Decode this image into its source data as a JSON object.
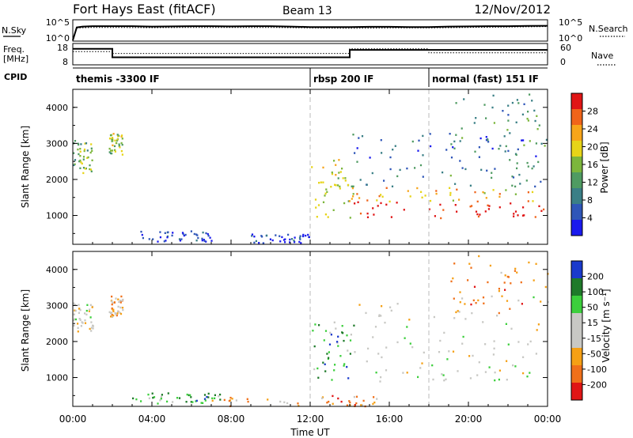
{
  "header": {
    "station": "Fort Hays East (fitACF)",
    "beam": "Beam 13",
    "date": "12/Nov/2012"
  },
  "chart_data": [
    {
      "type": "line",
      "panel": "noise",
      "left_label": "N.Sky",
      "right_label": "N.Search",
      "left_ticks": [
        "10^5",
        "10^0"
      ],
      "right_ticks": [
        "10^5",
        "10^0"
      ],
      "x_range_hours": [
        0,
        24
      ],
      "series": [
        {
          "name": "N.Sky",
          "style": "solid",
          "x": [
            0.0,
            0.2,
            0.5,
            1,
            2,
            3,
            4,
            5,
            6,
            7,
            8,
            9,
            10,
            11,
            12,
            13,
            14,
            15,
            16,
            17,
            18,
            19,
            20,
            21,
            22,
            23,
            24
          ],
          "y": [
            0.2,
            3.2,
            3.4,
            3.5,
            3.5,
            3.5,
            3.4,
            3.45,
            3.5,
            3.5,
            3.45,
            3.5,
            3.5,
            3.4,
            3.3,
            3.3,
            3.3,
            3.35,
            3.35,
            3.3,
            3.3,
            3.4,
            3.45,
            3.5,
            3.5,
            3.55,
            3.6
          ]
        },
        {
          "name": "N.Search",
          "style": "dotted",
          "x": [
            0.2,
            1,
            2,
            4,
            6,
            8,
            10,
            12,
            14,
            16,
            18,
            20,
            22,
            24
          ],
          "y": [
            3.1,
            3.2,
            3.2,
            3.15,
            3.2,
            3.2,
            3.2,
            3.1,
            3.0,
            3.1,
            3.1,
            3.2,
            3.3,
            3.4
          ]
        }
      ]
    },
    {
      "type": "line",
      "panel": "freq",
      "left_label_1": "Freq.",
      "left_label_2": "[MHz]",
      "right_label": "Nave",
      "left_ticks": [
        "18",
        "8"
      ],
      "right_ticks": [
        "60",
        "0"
      ],
      "series": [
        {
          "name": "Freq",
          "style": "solid",
          "x": [
            0,
            2,
            2,
            14,
            14,
            24
          ],
          "y": [
            15.5,
            15.5,
            11.5,
            11.5,
            15.0,
            15.0
          ]
        },
        {
          "name": "Nave",
          "style": "dotted",
          "x": [
            0,
            2,
            2,
            14,
            14,
            18,
            18,
            24
          ],
          "y": [
            37,
            37,
            32,
            32,
            45,
            45,
            34,
            34
          ]
        }
      ]
    },
    {
      "panel": "cpid",
      "label": "CPID",
      "segments": [
        {
          "name": "themis -3300 IF",
          "start": 0,
          "end": 12
        },
        {
          "name": "rbsp 200 IF",
          "start": 12,
          "end": 18
        },
        {
          "name": "normal (fast) 151 IF",
          "start": 18,
          "end": 24
        }
      ]
    },
    {
      "type": "heatmap",
      "panel": "power",
      "ylabel": "Slant Range [km]",
      "yticks": [
        "1000",
        "2000",
        "3000",
        "4000"
      ],
      "ylim": [
        200,
        4500
      ],
      "colorbar_label": "Power [dB]",
      "colorbar_ticks": [
        "4",
        "8",
        "12",
        "16",
        "20",
        "24",
        "28"
      ],
      "clim": [
        0,
        32
      ],
      "colors": [
        "#1a1aee",
        "#2f56b8",
        "#3a7f86",
        "#4f9b62",
        "#7cb63c",
        "#e7d418",
        "#f7a51a",
        "#f0641a",
        "#e01515"
      ],
      "regions": [
        {
          "t": [
            0.0,
            1.0
          ],
          "r": [
            2200,
            3100
          ],
          "level": 0.45
        },
        {
          "t": [
            1.8,
            2.5
          ],
          "r": [
            2700,
            3300
          ],
          "level": 0.5
        },
        {
          "t": [
            3.0,
            7.0
          ],
          "r": [
            300,
            600
          ],
          "level": 0.1
        },
        {
          "t": [
            9.0,
            12.0
          ],
          "r": [
            250,
            500
          ],
          "level": 0.1
        },
        {
          "t": [
            12.0,
            14.0
          ],
          "r": [
            900,
            2600
          ],
          "level": 0.6
        },
        {
          "t": [
            14.0,
            23.8
          ],
          "r": [
            950,
            1400
          ],
          "level": 0.98
        },
        {
          "t": [
            14.0,
            23.8
          ],
          "r": [
            1400,
            1800
          ],
          "level": 0.7
        },
        {
          "t": [
            14.0,
            23.8
          ],
          "r": [
            1800,
            2600
          ],
          "level": 0.3
        },
        {
          "t": [
            14.0,
            23.8
          ],
          "r": [
            2600,
            3300
          ],
          "level": 0.2
        },
        {
          "t": [
            19.0,
            24.0
          ],
          "r": [
            2800,
            4400
          ],
          "level": 0.35
        }
      ]
    },
    {
      "type": "heatmap",
      "panel": "velocity",
      "ylabel": "Slant Range [km]",
      "yticks": [
        "1000",
        "2000",
        "3000",
        "4000"
      ],
      "ylim": [
        200,
        4500
      ],
      "colorbar_label": "Velocity [m s⁻¹]",
      "colorbar_ticks": [
        "200",
        "100",
        "50",
        "15",
        "-15",
        "-50",
        "-100",
        "-200"
      ],
      "clim": [
        -250,
        250
      ],
      "colors": [
        "#1a3acc",
        "#1f7a2a",
        "#3ccf3c",
        "#c8c8c4",
        "#c8c8c4",
        "#f5a015",
        "#f0701a",
        "#e01515"
      ],
      "regions": [
        {
          "t": [
            0.0,
            1.0
          ],
          "r": [
            2300,
            3100
          ],
          "level": 0.5
        },
        {
          "t": [
            1.8,
            2.5
          ],
          "r": [
            2700,
            3300
          ],
          "level": 0.7
        },
        {
          "t": [
            3.0,
            7.5
          ],
          "r": [
            300,
            600
          ],
          "level": 0.25
        },
        {
          "t": [
            7.0,
            15.5
          ],
          "r": [
            220,
            520
          ],
          "level": 0.72
        },
        {
          "t": [
            12.0,
            14.2
          ],
          "r": [
            900,
            2600
          ],
          "level": 0.25
        },
        {
          "t": [
            14.0,
            23.8
          ],
          "r": [
            900,
            1800
          ],
          "level": 0.5
        },
        {
          "t": [
            14.0,
            23.8
          ],
          "r": [
            1800,
            3300
          ],
          "level": 0.5
        },
        {
          "t": [
            19.0,
            24.0
          ],
          "r": [
            2800,
            4400
          ],
          "level": 0.75
        }
      ]
    },
    {
      "panel": "time_axis",
      "xlabel": "Time UT",
      "xticks": [
        "00:00",
        "04:00",
        "08:00",
        "12:00",
        "16:00",
        "20:00",
        "00:00"
      ]
    }
  ]
}
